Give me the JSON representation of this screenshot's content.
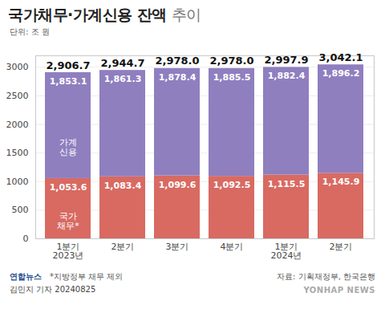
{
  "chart_data": {
    "type": "bar",
    "stacked": true,
    "title": "국가채무·가계신용 잔액 추이",
    "unit": "단위: 조 원",
    "categories": [
      "1분기\n2023년",
      "2분기",
      "3분기",
      "4분기",
      "1분기\n2024년",
      "2분기"
    ],
    "series": [
      {
        "name": "국가\n채무*",
        "color": "#d86a62",
        "values": [
          1053.6,
          1083.4,
          1099.6,
          1092.5,
          1115.5,
          1145.9
        ],
        "value_labels": [
          "1,053.6",
          "1,083.4",
          "1,099.6",
          "1,092.5",
          "1,115.5",
          "1,145.9"
        ]
      },
      {
        "name": "가계\n신용",
        "color": "#8f7fbf",
        "values": [
          1853.1,
          1861.3,
          1878.4,
          1885.5,
          1882.4,
          1896.2
        ],
        "value_labels": [
          "1,853.1",
          "1,861.3",
          "1,878.4",
          "1,885.5",
          "1,882.4",
          "1,896.2"
        ]
      }
    ],
    "totals": [
      2906.7,
      2944.7,
      2978.0,
      2978.0,
      2997.9,
      3042.1
    ],
    "total_labels": [
      "2,906.7",
      "2,944.7",
      "2,978.0",
      "2,978.0",
      "2,997.9",
      "3,042.1"
    ],
    "data_labels": true,
    "ylim": [
      0,
      3200
    ],
    "yticks": [
      0,
      500,
      1000,
      1500,
      2000,
      2500,
      3000
    ],
    "grid": true,
    "note": "*지방정부 채무 제외",
    "source": "자료: 기획재정부, 한국은행",
    "logo": "연합뉴스",
    "credit": "김민지 기자 20240825",
    "watermark": "YONHAP NEWS"
  }
}
